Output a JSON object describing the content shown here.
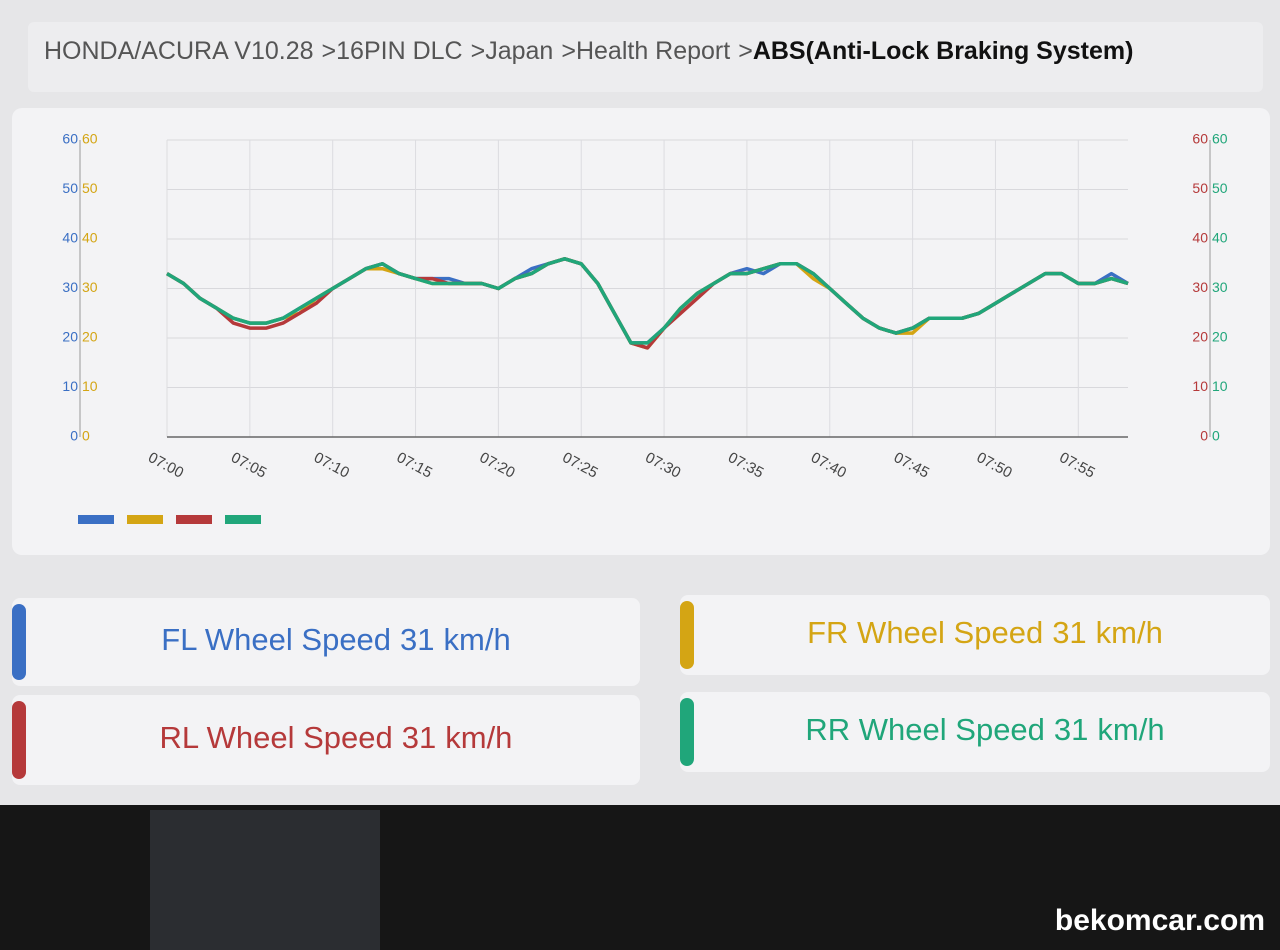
{
  "breadcrumb": {
    "items": [
      "HONDA/ACURA V10.28",
      "16PIN DLC",
      "Japan",
      "Health Report"
    ],
    "separator": ">",
    "current": "ABS(Anti-Lock Braking System)"
  },
  "chart_data": {
    "type": "line",
    "categories": [
      "07:00",
      null,
      null,
      null,
      null,
      "07:05",
      null,
      null,
      null,
      null,
      "07:10",
      null,
      null,
      null,
      null,
      "07:15",
      null,
      null,
      null,
      null,
      "07:20",
      null,
      null,
      null,
      null,
      "07:25",
      null,
      null,
      null,
      null,
      "07:30",
      null,
      null,
      null,
      null,
      "07:35",
      null,
      null,
      null,
      null,
      "07:40",
      null,
      null,
      null,
      null,
      "07:45",
      null,
      null,
      null,
      null,
      "07:50",
      null,
      null,
      null,
      null,
      "07:55",
      null,
      null,
      null
    ],
    "series": [
      {
        "color": "#3a6fc4",
        "values": [
          33,
          31,
          28,
          26,
          24,
          23,
          23,
          24,
          26,
          28,
          30,
          32,
          34,
          35,
          33,
          32,
          32,
          32,
          31,
          31,
          30,
          32,
          34,
          35,
          36,
          35,
          31,
          25,
          19,
          19,
          22,
          26,
          29,
          31,
          33,
          34,
          33,
          35,
          35,
          33,
          30,
          27,
          24,
          22,
          21,
          22,
          24,
          24,
          24,
          25,
          27,
          29,
          31,
          33,
          33,
          31,
          31,
          33,
          31
        ]
      },
      {
        "color": "#d4a514",
        "values": [
          33,
          31,
          28,
          26,
          24,
          23,
          23,
          24,
          25,
          28,
          30,
          32,
          34,
          34,
          33,
          32,
          31,
          31,
          31,
          31,
          30,
          32,
          33,
          35,
          36,
          35,
          31,
          25,
          19,
          18,
          22,
          26,
          29,
          31,
          33,
          33,
          34,
          35,
          35,
          32,
          30,
          27,
          24,
          22,
          21,
          21,
          24,
          24,
          24,
          25,
          27,
          29,
          31,
          33,
          33,
          31,
          31,
          32,
          31
        ]
      },
      {
        "color": "#b5393a",
        "values": [
          33,
          31,
          28,
          26,
          23,
          22,
          22,
          23,
          25,
          27,
          30,
          32,
          34,
          35,
          33,
          32,
          32,
          31,
          31,
          31,
          30,
          32,
          33,
          35,
          36,
          35,
          31,
          25,
          19,
          18,
          22,
          25,
          28,
          31,
          33,
          33,
          34,
          35,
          35,
          33,
          30,
          27,
          24,
          22,
          21,
          22,
          24,
          24,
          24,
          25,
          27,
          29,
          31,
          33,
          33,
          31,
          31,
          32,
          31
        ],
        "axis": "y2"
      },
      {
        "color": "#20a67a",
        "values": [
          33,
          31,
          28,
          26,
          24,
          23,
          23,
          24,
          26,
          28,
          30,
          32,
          34,
          35,
          33,
          32,
          31,
          31,
          31,
          31,
          30,
          32,
          33,
          35,
          36,
          35,
          31,
          25,
          19,
          19,
          22,
          26,
          29,
          31,
          33,
          33,
          34,
          35,
          35,
          33,
          30,
          27,
          24,
          22,
          21,
          22,
          24,
          24,
          24,
          25,
          27,
          29,
          31,
          33,
          33,
          31,
          31,
          32,
          31
        ],
        "axis": "y2"
      }
    ],
    "ylim": [
      0,
      60
    ],
    "yticks": [
      0,
      10,
      20,
      30,
      40,
      50,
      60
    ],
    "y2lim": [
      0,
      60
    ],
    "y2ticks": [
      0,
      10,
      20,
      30,
      40,
      50,
      60
    ],
    "grid": true
  },
  "cards": [
    {
      "label": "FL Wheel Speed",
      "value": 31,
      "unit": "km/h"
    },
    {
      "label": "FR Wheel Speed",
      "value": 31,
      "unit": "km/h"
    },
    {
      "label": "RL Wheel Speed",
      "value": 31,
      "unit": "km/h"
    },
    {
      "label": "RR Wheel Speed",
      "value": 31,
      "unit": "km/h"
    }
  ],
  "watermark": "bekomcar.com"
}
